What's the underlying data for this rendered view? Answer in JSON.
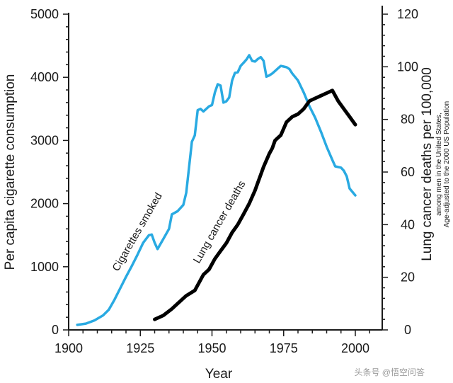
{
  "chart_data": {
    "type": "line",
    "xlabel": "Year",
    "ylabel_left": "Per capita cigarette consumption",
    "ylabel_right": "Lung cancer deaths per 100,000",
    "ylabel_right_note": [
      "among men in the United States,",
      "Age-adjusted to the 2000 US Population"
    ],
    "xlim": [
      1900,
      2005
    ],
    "ylim_left": [
      0,
      5000
    ],
    "ylim_right": [
      0,
      120
    ],
    "x_ticks": [
      1900,
      1925,
      1950,
      1975,
      2000
    ],
    "y_left_ticks": [
      0,
      1000,
      2000,
      3000,
      4000,
      5000
    ],
    "y_right_ticks": [
      0,
      20,
      40,
      60,
      80,
      100,
      120
    ],
    "grid": false,
    "series": [
      {
        "name": "Cigarettes smoked",
        "axis": "left",
        "color": "#29aae2",
        "x": [
          1903,
          1906,
          1909,
          1912,
          1914,
          1916,
          1918,
          1920,
          1922,
          1924,
          1926,
          1928,
          1929,
          1930,
          1931,
          1933,
          1935,
          1936,
          1938,
          1940,
          1941,
          1943,
          1944,
          1945,
          1946,
          1947,
          1949,
          1950,
          1951,
          1952,
          1953,
          1954,
          1955,
          1956,
          1957,
          1958,
          1959,
          1960,
          1961,
          1962,
          1963,
          1964,
          1965,
          1966,
          1967,
          1968,
          1969,
          1970,
          1971,
          1972,
          1973,
          1974,
          1975,
          1976,
          1977,
          1978,
          1980,
          1982,
          1984,
          1986,
          1988,
          1990,
          1992,
          1993,
          1995,
          1996,
          1997,
          1998,
          2000
        ],
        "y": [
          80,
          100,
          150,
          230,
          320,
          480,
          660,
          840,
          1010,
          1190,
          1380,
          1500,
          1510,
          1380,
          1280,
          1440,
          1600,
          1830,
          1880,
          1980,
          2170,
          2980,
          3080,
          3480,
          3500,
          3460,
          3540,
          3560,
          3760,
          3890,
          3870,
          3600,
          3620,
          3680,
          3950,
          4070,
          4080,
          4180,
          4230,
          4280,
          4350,
          4260,
          4250,
          4290,
          4320,
          4260,
          4010,
          4030,
          4060,
          4100,
          4140,
          4180,
          4170,
          4160,
          4130,
          4060,
          3950,
          3760,
          3540,
          3360,
          3140,
          2900,
          2690,
          2590,
          2570,
          2520,
          2430,
          2240,
          2130
        ]
      },
      {
        "name": "Lung cancer deaths",
        "axis": "right",
        "color": "#000000",
        "x": [
          1930,
          1933,
          1936,
          1938,
          1941,
          1944,
          1946,
          1947,
          1949,
          1951,
          1953,
          1955,
          1957,
          1959,
          1961,
          1963,
          1965,
          1966,
          1967,
          1968,
          1970,
          1971,
          1972,
          1973,
          1974,
          1976,
          1978,
          1980,
          1982,
          1984,
          1986,
          1988,
          1990,
          1992,
          1994,
          1996,
          1998,
          2000
        ],
        "y": [
          4,
          5.5,
          8,
          10,
          13,
          15,
          19,
          21,
          23,
          27,
          30,
          33,
          37,
          40,
          44,
          48,
          53,
          56,
          59,
          62,
          67,
          69,
          72,
          73,
          74,
          79,
          81,
          82,
          84,
          87,
          88,
          89,
          90,
          91,
          87,
          84,
          81,
          78
        ]
      }
    ],
    "annotations": [
      "Cigarettes smoked",
      "Lung cancer deaths"
    ]
  },
  "watermark": "头条号 @悟空问答"
}
